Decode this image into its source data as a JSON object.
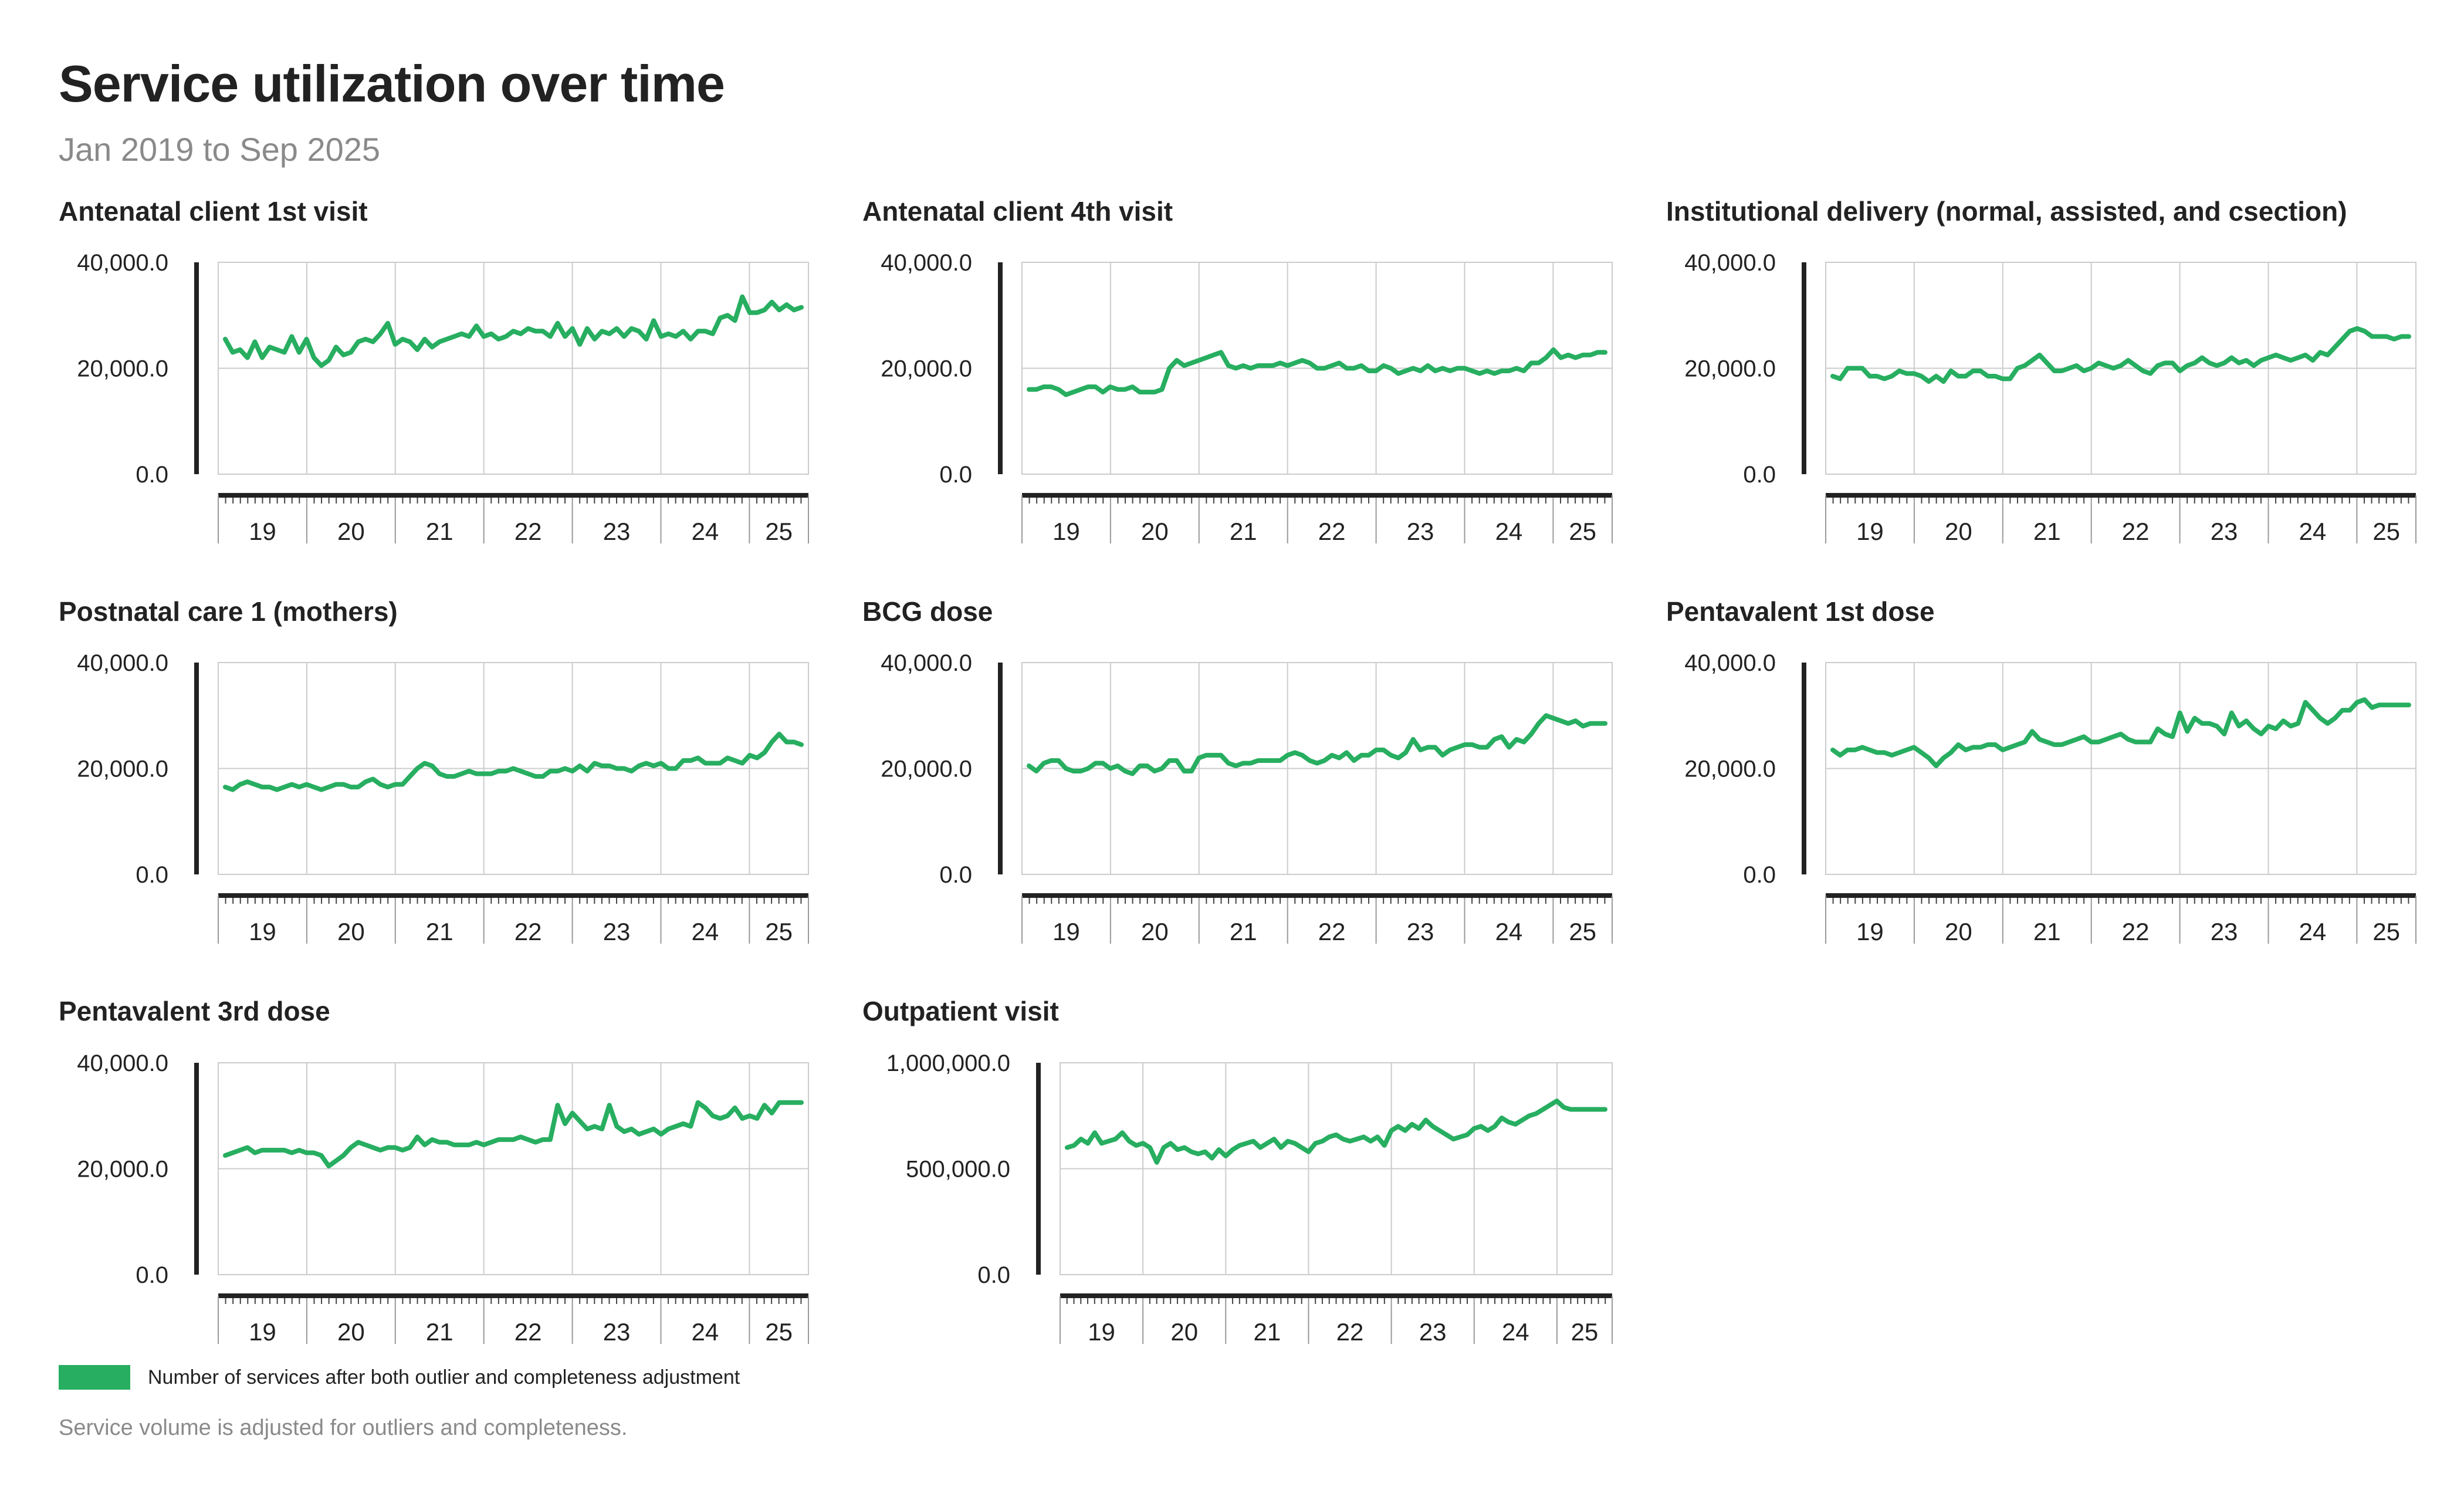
{
  "header": {
    "title": "Service utilization over time",
    "subtitle": "Jan 2019 to Sep 2025"
  },
  "legend": {
    "label": "Number of services after both outlier and completeness adjustment",
    "color": "#27ae60"
  },
  "footnote": "Service volume is adjusted for outliers and completeness.",
  "colors": {
    "series": "#27ae60",
    "grid": "#cccccc",
    "axis": "#222222"
  },
  "chart_data": [
    {
      "type": "line",
      "title": "Antenatal client 1st visit",
      "x_start": "2019-01",
      "x_end": "2025-09",
      "xticks": [
        "19",
        "20",
        "21",
        "22",
        "23",
        "24",
        "25"
      ],
      "ylim": [
        0,
        40000
      ],
      "yticks": [
        "0.0",
        "20,000.0",
        "40,000.0"
      ],
      "series": [
        {
          "values": [
            25500,
            23000,
            23500,
            22000,
            25000,
            22000,
            24000,
            23500,
            23000,
            26000,
            23000,
            25500,
            22000,
            20500,
            21500,
            24000,
            22500,
            23000,
            25000,
            25500,
            25000,
            26500,
            28500,
            24500,
            25500,
            25000,
            23500,
            25500,
            24000,
            25000,
            25500,
            26000,
            26500,
            26000,
            28000,
            26000,
            26500,
            25500,
            26000,
            27000,
            26500,
            27500,
            27000,
            27000,
            26000,
            28500,
            26000,
            27500,
            24500,
            27500,
            25500,
            27000,
            26500,
            27500,
            26000,
            27500,
            27000,
            25500,
            29000,
            26000,
            26500,
            26000,
            27000,
            25500,
            27000,
            27000,
            26500,
            29500,
            30000,
            29000,
            33500,
            30500,
            30500,
            31000,
            32500,
            31000,
            32000,
            31000,
            31500
          ]
        }
      ]
    },
    {
      "type": "line",
      "title": "Antenatal client 4th visit",
      "x_start": "2019-01",
      "x_end": "2025-09",
      "xticks": [
        "19",
        "20",
        "21",
        "22",
        "23",
        "24",
        "25"
      ],
      "ylim": [
        0,
        40000
      ],
      "yticks": [
        "0.0",
        "20,000.0",
        "40,000.0"
      ],
      "series": [
        {
          "values": [
            16000,
            16000,
            16500,
            16500,
            16000,
            15000,
            15500,
            16000,
            16500,
            16500,
            15500,
            16500,
            16000,
            16000,
            16500,
            15500,
            15500,
            15500,
            16000,
            20000,
            21500,
            20500,
            21000,
            21500,
            22000,
            22500,
            23000,
            20500,
            20000,
            20500,
            20000,
            20500,
            20500,
            20500,
            21000,
            20500,
            21000,
            21500,
            21000,
            20000,
            20000,
            20500,
            21000,
            20000,
            20000,
            20500,
            19500,
            19500,
            20500,
            20000,
            19000,
            19500,
            20000,
            19500,
            20500,
            19500,
            20000,
            19500,
            20000,
            20000,
            19500,
            19000,
            19500,
            19000,
            19500,
            19500,
            20000,
            19500,
            21000,
            21000,
            22000,
            23500,
            22000,
            22500,
            22000,
            22500,
            22500,
            23000,
            23000
          ]
        }
      ]
    },
    {
      "type": "line",
      "title": "Institutional delivery (normal, assisted, and csection)",
      "x_start": "2019-01",
      "x_end": "2025-09",
      "xticks": [
        "19",
        "20",
        "21",
        "22",
        "23",
        "24",
        "25"
      ],
      "ylim": [
        0,
        40000
      ],
      "yticks": [
        "0.0",
        "20,000.0",
        "40,000.0"
      ],
      "series": [
        {
          "values": [
            18500,
            18000,
            20000,
            20000,
            20000,
            18500,
            18500,
            18000,
            18500,
            19500,
            19000,
            19000,
            18500,
            17500,
            18500,
            17500,
            19500,
            18500,
            18500,
            19500,
            19500,
            18500,
            18500,
            18000,
            18000,
            20000,
            20500,
            21500,
            22500,
            21000,
            19500,
            19500,
            20000,
            20500,
            19500,
            20000,
            21000,
            20500,
            20000,
            20500,
            21500,
            20500,
            19500,
            19000,
            20500,
            21000,
            21000,
            19500,
            20500,
            21000,
            22000,
            21000,
            20500,
            21000,
            22000,
            21000,
            21500,
            20500,
            21500,
            22000,
            22500,
            22000,
            21500,
            22000,
            22500,
            21500,
            23000,
            22500,
            24000,
            25500,
            27000,
            27500,
            27000,
            26000,
            26000,
            26000,
            25500,
            26000,
            26000
          ]
        }
      ]
    },
    {
      "type": "line",
      "title": "Postnatal care 1 (mothers)",
      "x_start": "2019-01",
      "x_end": "2025-09",
      "xticks": [
        "19",
        "20",
        "21",
        "22",
        "23",
        "24",
        "25"
      ],
      "ylim": [
        0,
        40000
      ],
      "yticks": [
        "0.0",
        "20,000.0",
        "40,000.0"
      ],
      "series": [
        {
          "values": [
            16500,
            16000,
            17000,
            17500,
            17000,
            16500,
            16500,
            16000,
            16500,
            17000,
            16500,
            17000,
            16500,
            16000,
            16500,
            17000,
            17000,
            16500,
            16500,
            17500,
            18000,
            17000,
            16500,
            17000,
            17000,
            18500,
            20000,
            21000,
            20500,
            19000,
            18500,
            18500,
            19000,
            19500,
            19000,
            19000,
            19000,
            19500,
            19500,
            20000,
            19500,
            19000,
            18500,
            18500,
            19500,
            19500,
            20000,
            19500,
            20500,
            19500,
            21000,
            20500,
            20500,
            20000,
            20000,
            19500,
            20500,
            21000,
            20500,
            21000,
            20000,
            20000,
            21500,
            21500,
            22000,
            21000,
            21000,
            21000,
            22000,
            21500,
            21000,
            22500,
            22000,
            23000,
            25000,
            26500,
            25000,
            25000,
            24500
          ]
        }
      ]
    },
    {
      "type": "line",
      "title": "BCG dose",
      "x_start": "2019-01",
      "x_end": "2025-09",
      "xticks": [
        "19",
        "20",
        "21",
        "22",
        "23",
        "24",
        "25"
      ],
      "ylim": [
        0,
        40000
      ],
      "yticks": [
        "0.0",
        "20,000.0",
        "40,000.0"
      ],
      "series": [
        {
          "values": [
            20500,
            19500,
            21000,
            21500,
            21500,
            20000,
            19500,
            19500,
            20000,
            21000,
            21000,
            20000,
            20500,
            19500,
            19000,
            20500,
            20500,
            19500,
            20000,
            21500,
            21500,
            19500,
            19500,
            22000,
            22500,
            22500,
            22500,
            21000,
            20500,
            21000,
            21000,
            21500,
            21500,
            21500,
            21500,
            22500,
            23000,
            22500,
            21500,
            21000,
            21500,
            22500,
            22000,
            23000,
            21500,
            22500,
            22500,
            23500,
            23500,
            22500,
            22000,
            23000,
            25500,
            23500,
            24000,
            24000,
            22500,
            23500,
            24000,
            24500,
            24500,
            24000,
            24000,
            25500,
            26000,
            24000,
            25500,
            25000,
            26500,
            28500,
            30000,
            29500,
            29000,
            28500,
            29000,
            28000,
            28500,
            28500,
            28500
          ]
        }
      ]
    },
    {
      "type": "line",
      "title": "Pentavalent 1st dose",
      "x_start": "2019-01",
      "x_end": "2025-09",
      "xticks": [
        "19",
        "20",
        "21",
        "22",
        "23",
        "24",
        "25"
      ],
      "ylim": [
        0,
        40000
      ],
      "yticks": [
        "0.0",
        "20,000.0",
        "40,000.0"
      ],
      "series": [
        {
          "values": [
            23500,
            22500,
            23500,
            23500,
            24000,
            23500,
            23000,
            23000,
            22500,
            23000,
            23500,
            24000,
            23000,
            22000,
            20500,
            22000,
            23000,
            24500,
            23500,
            24000,
            24000,
            24500,
            24500,
            23500,
            24000,
            24500,
            25000,
            27000,
            25500,
            25000,
            24500,
            24500,
            25000,
            25500,
            26000,
            25000,
            25000,
            25500,
            26000,
            26500,
            25500,
            25000,
            25000,
            25000,
            27500,
            26500,
            26000,
            30500,
            27000,
            29500,
            28500,
            28500,
            28000,
            26500,
            30500,
            28000,
            29000,
            27500,
            26500,
            28000,
            27500,
            29000,
            28000,
            28500,
            32500,
            31000,
            29500,
            28500,
            29500,
            31000,
            31000,
            32500,
            33000,
            31500,
            32000,
            32000,
            32000,
            32000,
            32000
          ]
        }
      ]
    },
    {
      "type": "line",
      "title": "Pentavalent 3rd dose",
      "x_start": "2019-01",
      "x_end": "2025-09",
      "xticks": [
        "19",
        "20",
        "21",
        "22",
        "23",
        "24",
        "25"
      ],
      "ylim": [
        0,
        40000
      ],
      "yticks": [
        "0.0",
        "20,000.0",
        "40,000.0"
      ],
      "series": [
        {
          "values": [
            22500,
            23000,
            23500,
            24000,
            23000,
            23500,
            23500,
            23500,
            23500,
            23000,
            23500,
            23000,
            23000,
            22500,
            20500,
            21500,
            22500,
            24000,
            25000,
            24500,
            24000,
            23500,
            24000,
            24000,
            23500,
            24000,
            26000,
            24500,
            25500,
            25000,
            25000,
            24500,
            24500,
            24500,
            25000,
            24500,
            25000,
            25500,
            25500,
            25500,
            26000,
            25500,
            25000,
            25500,
            25500,
            32000,
            28500,
            30500,
            29000,
            27500,
            28000,
            27500,
            32000,
            28000,
            27000,
            27500,
            26500,
            27000,
            27500,
            26500,
            27500,
            28000,
            28500,
            28000,
            32500,
            31500,
            30000,
            29500,
            30000,
            31500,
            29500,
            30000,
            29500,
            32000,
            30500,
            32500,
            32500,
            32500,
            32500
          ]
        }
      ]
    },
    {
      "type": "line",
      "title": "Outpatient visit",
      "x_start": "2019-01",
      "x_end": "2025-09",
      "xticks": [
        "19",
        "20",
        "21",
        "22",
        "23",
        "24",
        "25"
      ],
      "ylim": [
        0,
        1000000
      ],
      "yticks": [
        "0.0",
        "500,000.0",
        "1,000,000.0"
      ],
      "series": [
        {
          "values": [
            600000,
            610000,
            640000,
            620000,
            670000,
            620000,
            630000,
            640000,
            670000,
            630000,
            610000,
            620000,
            600000,
            530000,
            600000,
            620000,
            590000,
            600000,
            580000,
            570000,
            580000,
            550000,
            590000,
            560000,
            590000,
            610000,
            620000,
            630000,
            600000,
            620000,
            640000,
            600000,
            630000,
            620000,
            600000,
            580000,
            620000,
            630000,
            650000,
            660000,
            640000,
            630000,
            640000,
            650000,
            630000,
            650000,
            610000,
            680000,
            700000,
            680000,
            710000,
            690000,
            730000,
            700000,
            680000,
            660000,
            640000,
            650000,
            660000,
            690000,
            700000,
            680000,
            700000,
            740000,
            720000,
            710000,
            730000,
            750000,
            760000,
            780000,
            800000,
            820000,
            790000,
            780000,
            780000,
            780000,
            780000,
            780000,
            780000
          ]
        }
      ]
    }
  ]
}
